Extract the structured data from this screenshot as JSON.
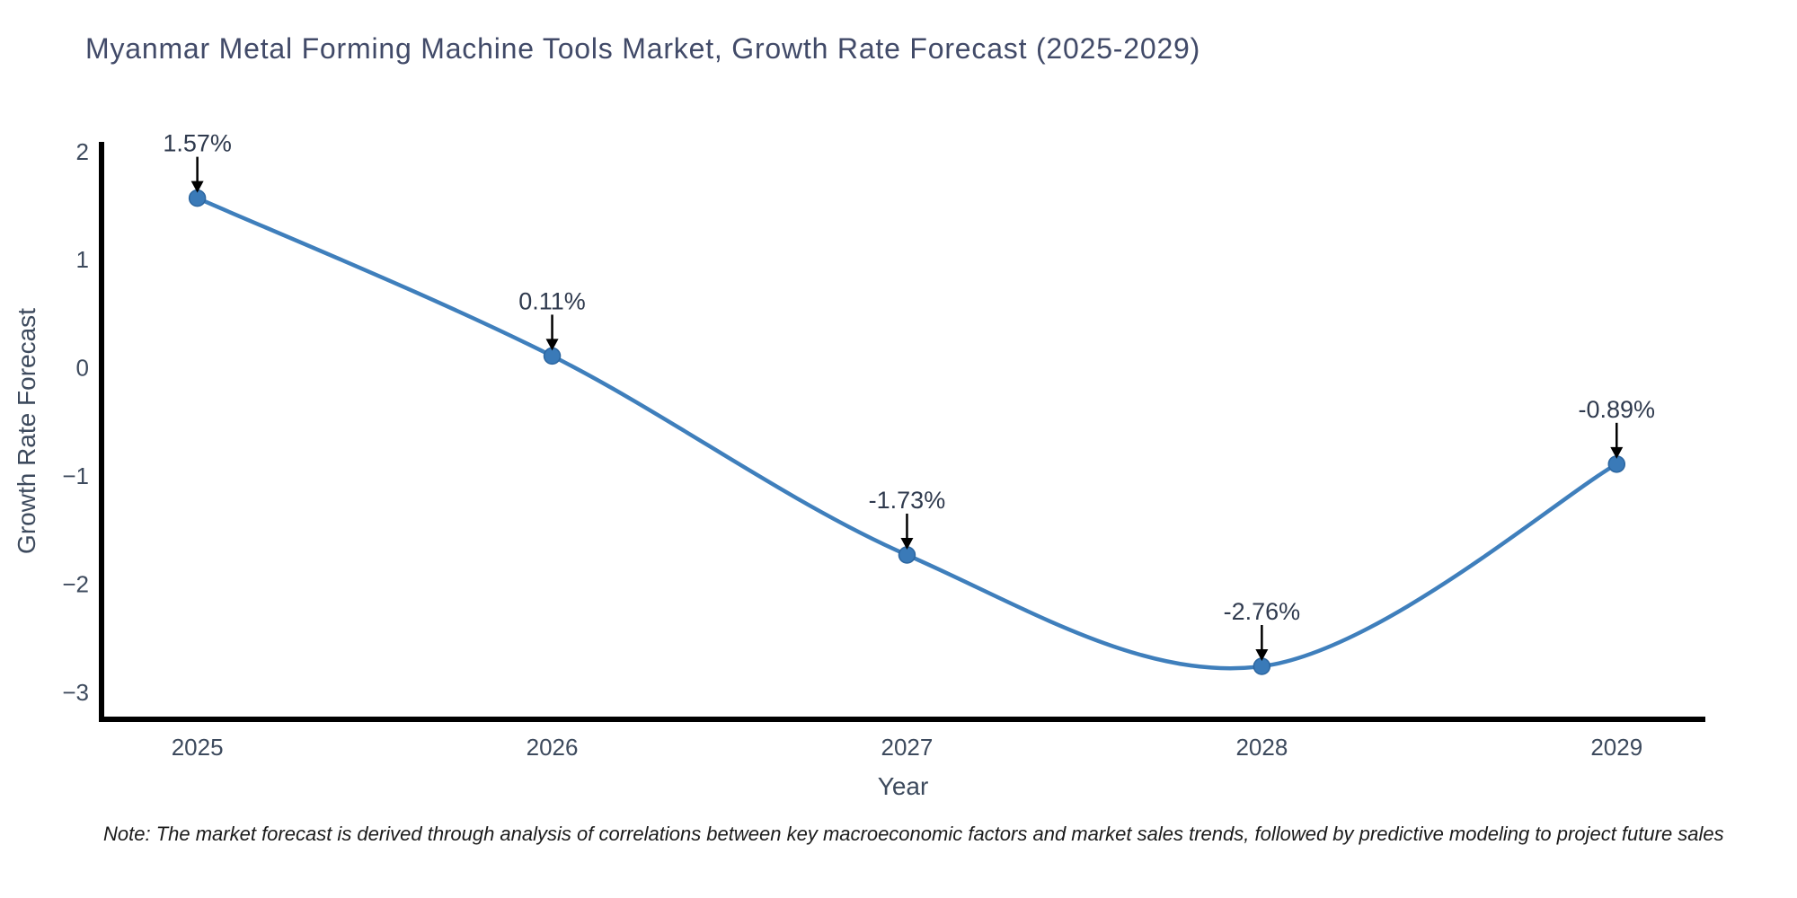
{
  "title": "Myanmar Metal Forming Machine Tools Market, Growth Rate Forecast (2025-2029)",
  "footnote": "Note: The market forecast is derived through analysis of correlations between key macroeconomic factors and market sales trends, followed by predictive modeling to project future sales",
  "chart_data": {
    "type": "line",
    "title": "Myanmar Metal Forming Machine Tools Market, Growth Rate Forecast (2025-2029)",
    "xlabel": "Year",
    "ylabel": "Growth Rate Forecast",
    "x": [
      2025,
      2026,
      2027,
      2028,
      2029
    ],
    "y": [
      1.57,
      0.11,
      -1.73,
      -2.76,
      -0.89
    ],
    "point_labels": [
      "1.57%",
      "0.11%",
      "-1.73%",
      "-2.76%",
      "-0.89%"
    ],
    "xtick_labels": [
      "2025",
      "2026",
      "2027",
      "2028",
      "2029"
    ],
    "yticks": [
      2,
      1,
      0,
      -1,
      -2,
      -3
    ],
    "ytick_labels": [
      "2",
      "1",
      "0",
      "−1",
      "−2",
      "−3"
    ],
    "xlim": [
      2024.73,
      2029.25
    ],
    "ylim": [
      -3.25,
      2.09
    ],
    "grid": false,
    "legend": null,
    "smooth": true,
    "colors": {
      "line": "#3f7fbc",
      "marker_fill": "#3a7ab8",
      "marker_edge": "#2c66a0",
      "axis": "#000000",
      "arrow": "#000000",
      "title_text": "#414a68",
      "tick_text": "#3d4a5d",
      "annotation_text": "#2f3a4e",
      "note_text": "#1b1b1b",
      "background": "#ffffff"
    }
  }
}
